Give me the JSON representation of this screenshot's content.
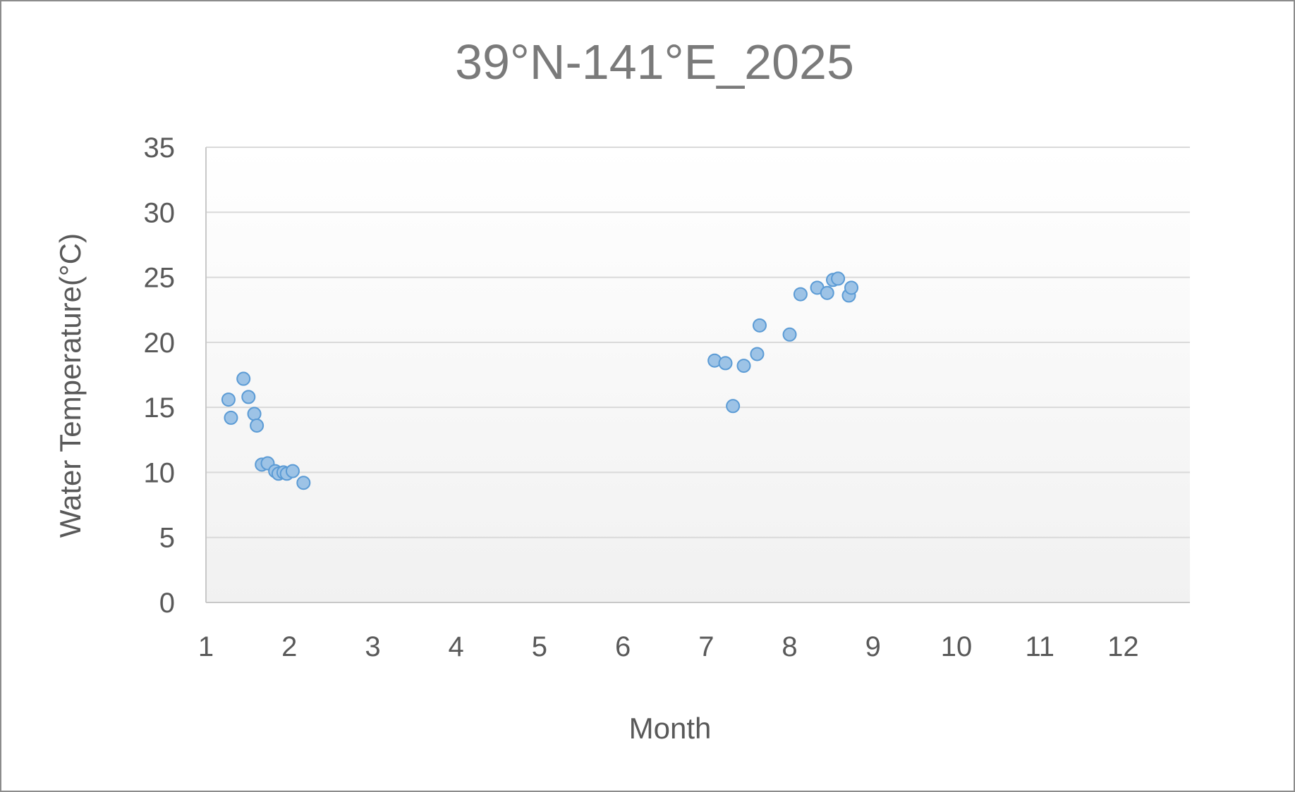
{
  "chart_data": {
    "type": "scatter",
    "title": "39°N-141°E_2025",
    "xlabel": "Month",
    "ylabel": "Water Temperature(°C)",
    "xlim": [
      1,
      12.8
    ],
    "ylim": [
      0,
      35
    ],
    "xticks": [
      1,
      2,
      3,
      4,
      5,
      6,
      7,
      8,
      9,
      10,
      11,
      12
    ],
    "yticks": [
      0,
      5,
      10,
      15,
      20,
      25,
      30,
      35
    ],
    "grid": "horizontal",
    "legend": "none",
    "series": [
      {
        "marker_color": "#9dc3e6",
        "marker_edge_color": "#5b9bd5",
        "points": [
          [
            1.27,
            15.6
          ],
          [
            1.3,
            14.2
          ],
          [
            1.45,
            17.2
          ],
          [
            1.51,
            15.8
          ],
          [
            1.58,
            14.5
          ],
          [
            1.61,
            13.6
          ],
          [
            1.67,
            10.6
          ],
          [
            1.74,
            10.7
          ],
          [
            1.83,
            10.1
          ],
          [
            1.87,
            9.9
          ],
          [
            1.93,
            10.0
          ],
          [
            1.97,
            9.9
          ],
          [
            2.04,
            10.1
          ],
          [
            2.17,
            9.2
          ],
          [
            7.1,
            18.6
          ],
          [
            7.23,
            18.4
          ],
          [
            7.32,
            15.1
          ],
          [
            7.45,
            18.2
          ],
          [
            7.61,
            19.1
          ],
          [
            7.64,
            21.3
          ],
          [
            8.0,
            20.6
          ],
          [
            8.13,
            23.7
          ],
          [
            8.33,
            24.2
          ],
          [
            8.45,
            23.8
          ],
          [
            8.52,
            24.8
          ],
          [
            8.58,
            24.9
          ],
          [
            8.71,
            23.6
          ],
          [
            8.74,
            24.2
          ]
        ]
      }
    ]
  }
}
